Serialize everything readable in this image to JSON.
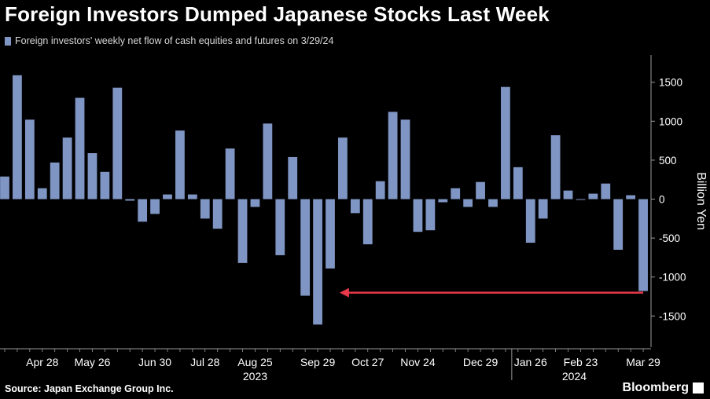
{
  "title": "Foreign Investors Dumped Japanese Stocks Last Week",
  "legend": "Foreign investors' weekly net flow of cash equities and futures on 3/29/24",
  "source": "Source: Japan Exchange Group Inc.",
  "brand": "Bloomberg",
  "colors": {
    "bar": "#7f95c3",
    "arrow": "#e8394b",
    "axis": "#9a9a9a",
    "background": "#000000"
  },
  "chart_data": {
    "type": "bar",
    "ylabel": "Billion Yen",
    "ylim": [
      -1900,
      1850
    ],
    "yticks": [
      1500,
      1000,
      500,
      0,
      -500,
      -1000,
      -1500
    ],
    "x_labels": [
      "Apr 28",
      "May 26",
      "Jun 30",
      "Jul 28",
      "Aug 25",
      "Sep 29",
      "Oct 27",
      "Nov 24",
      "Dec 29",
      "Jan 26",
      "Feb 23",
      "Mar 29"
    ],
    "x_label_bar_index": [
      3,
      7,
      12,
      16,
      20,
      25,
      29,
      33,
      38,
      42,
      46,
      51
    ],
    "year_labels": [
      {
        "text": "2023",
        "bar_index": 20
      },
      {
        "text": "2024",
        "bar_index": 45.5
      }
    ],
    "values": [
      290,
      1590,
      1020,
      140,
      470,
      790,
      1300,
      590,
      350,
      1430,
      -20,
      -290,
      -190,
      60,
      880,
      60,
      -250,
      -380,
      650,
      -820,
      -100,
      970,
      -720,
      540,
      -1240,
      -1610,
      -890,
      790,
      -180,
      -580,
      230,
      1120,
      1020,
      -420,
      -400,
      -40,
      140,
      -100,
      220,
      -100,
      1440,
      410,
      -560,
      -250,
      820,
      110,
      -10,
      70,
      200,
      -650,
      50,
      -1180
    ],
    "annotation": {
      "type": "arrow",
      "from_bar_index": 51,
      "to_bar_index": 27,
      "value": -1180
    }
  }
}
